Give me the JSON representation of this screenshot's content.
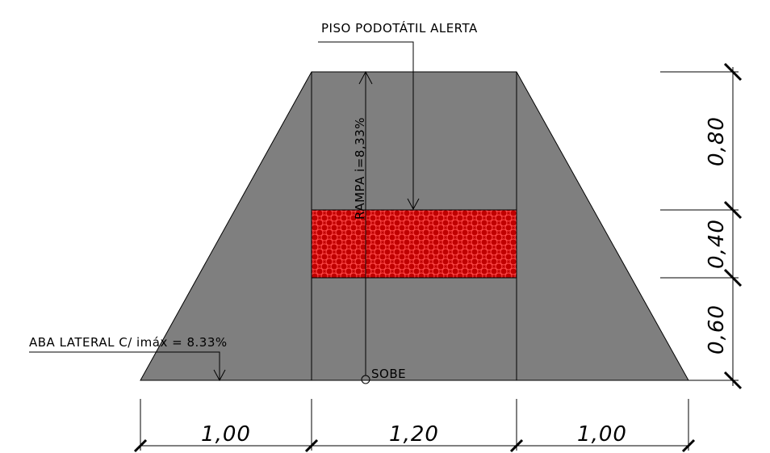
{
  "labels": {
    "tactile_floor": "PISO PODOTÁTIL ALERTA",
    "ramp": "RAMPA i=8,33%",
    "side_flap": "ABA LATERAL C/ imáx = 8.33%",
    "up": "SOBE"
  },
  "dimensions": {
    "horizontal": [
      "1,00",
      "1,20",
      "1,00"
    ],
    "vertical": [
      "0,80",
      "0,40",
      "0,60"
    ]
  },
  "colors": {
    "ramp_fill": "#7f7f7f",
    "tactile_fill": "#c00000",
    "tactile_pattern": "#e83030",
    "line": "#000000"
  }
}
